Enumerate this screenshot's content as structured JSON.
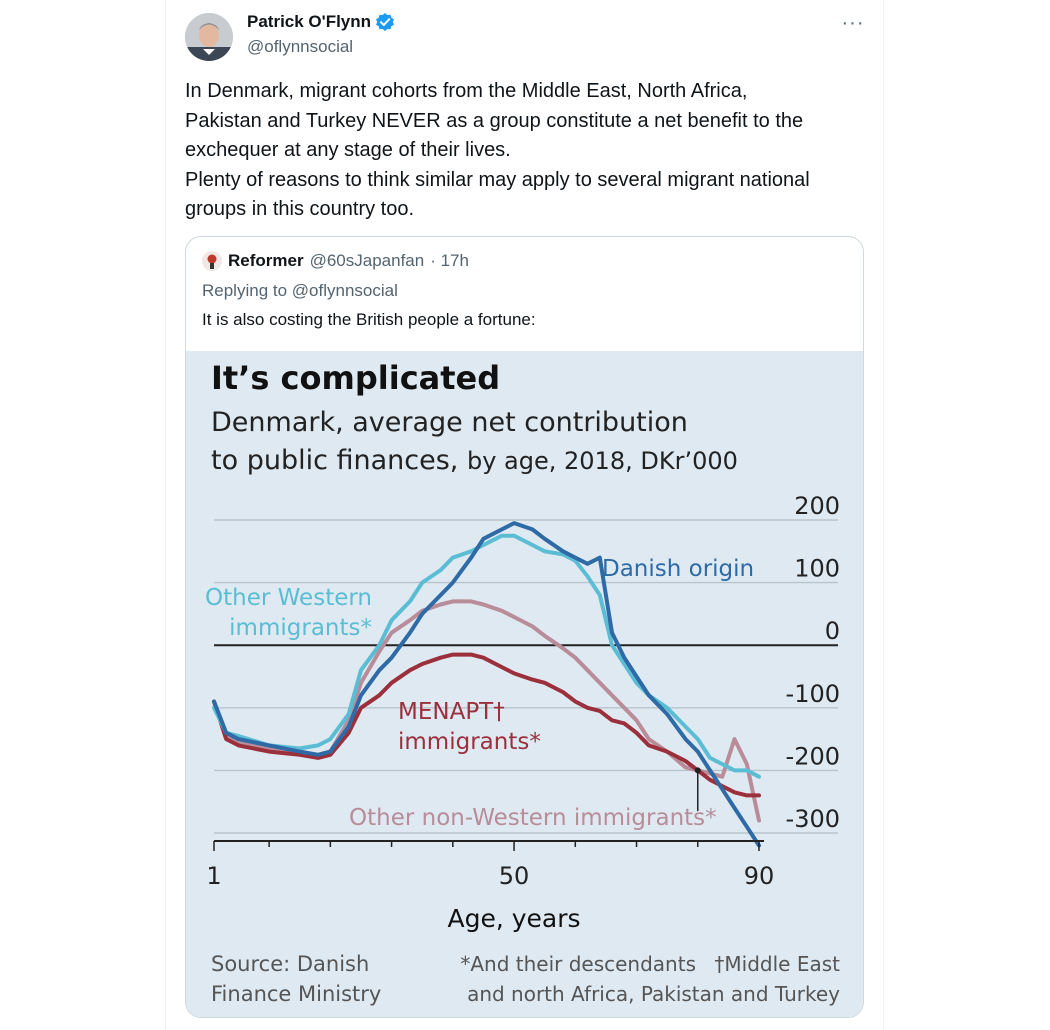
{
  "tweet": {
    "author_name": "Patrick O'Flynn",
    "handle": "@oflynnsocial",
    "more_label": "···",
    "text_lines": [
      "In Denmark, migrant cohorts from the Middle East, North Africa,",
      "Pakistan and Turkey NEVER as a group constitute a net benefit to the",
      "exchequer at any stage of their lives.",
      "Plenty of reasons to think similar may apply to several migrant national",
      "groups in this country too."
    ]
  },
  "quote": {
    "author_name": "Reformer",
    "handle": "@60sJapanfan",
    "time": "· 17h",
    "replying_to": "Replying to @oflynnsocial",
    "text": "It is also costing the British people a fortune:"
  },
  "chart_data": {
    "type": "line",
    "title": "It’s complicated",
    "subtitle_line1": "Denmark, average net contribution",
    "subtitle_line2_bold": "to public finances,",
    "subtitle_line2_rest": "by age, 2018, DKr’000",
    "xlabel": "Age, years",
    "x_ticks": [
      "1",
      "50",
      "90"
    ],
    "y_ticks": [
      "200",
      "100",
      "0",
      "-100",
      "-200",
      "-300"
    ],
    "xlim": [
      1,
      90
    ],
    "ylim": [
      -300,
      200
    ],
    "source": [
      "Source: Danish",
      "Finance Ministry"
    ],
    "footnote_left": [
      "*And their descendants",
      "and north Africa, Pakistan and Turkey"
    ],
    "footnote_right": "†Middle East",
    "colors": {
      "danish": "#2e6aa5",
      "western": "#5bbdd4",
      "menapt": "#9b2f3c",
      "nonwestern": "#b88c98",
      "background": "#dfe9f1"
    },
    "series": [
      {
        "key": "danish",
        "name": "Danish origin",
        "x": [
          1,
          3,
          5,
          10,
          15,
          18,
          20,
          23,
          25,
          28,
          30,
          33,
          35,
          38,
          40,
          43,
          45,
          48,
          50,
          53,
          55,
          58,
          60,
          62,
          64,
          66,
          68,
          70,
          72,
          75,
          78,
          80,
          82,
          84,
          86,
          88,
          90
        ],
        "y": [
          -90,
          -140,
          -150,
          -160,
          -170,
          -175,
          -170,
          -130,
          -80,
          -40,
          -20,
          20,
          50,
          80,
          100,
          140,
          170,
          185,
          195,
          185,
          170,
          150,
          140,
          130,
          140,
          20,
          -20,
          -50,
          -80,
          -110,
          -150,
          -170,
          -200,
          -230,
          -260,
          -290,
          -320
        ]
      },
      {
        "key": "western",
        "name": "Other Western immigrants*",
        "x": [
          1,
          3,
          5,
          10,
          15,
          18,
          20,
          23,
          25,
          28,
          30,
          33,
          35,
          38,
          40,
          43,
          45,
          48,
          50,
          53,
          55,
          58,
          60,
          62,
          64,
          66,
          68,
          70,
          72,
          75,
          78,
          80,
          82,
          84,
          86,
          88,
          90
        ],
        "y": [
          -100,
          -140,
          -145,
          -160,
          -165,
          -160,
          -150,
          -110,
          -40,
          0,
          40,
          70,
          100,
          120,
          140,
          150,
          160,
          175,
          175,
          160,
          150,
          145,
          135,
          110,
          80,
          0,
          -30,
          -60,
          -80,
          -100,
          -130,
          -150,
          -180,
          -190,
          -200,
          -200,
          -210
        ]
      },
      {
        "key": "menapt",
        "name": "MENAPT† immigrants*",
        "x": [
          1,
          3,
          5,
          10,
          15,
          18,
          20,
          23,
          25,
          28,
          30,
          33,
          35,
          38,
          40,
          43,
          45,
          48,
          50,
          53,
          55,
          58,
          60,
          62,
          64,
          66,
          68,
          70,
          72,
          75,
          78,
          80,
          82,
          84,
          86,
          88,
          90
        ],
        "y": [
          -90,
          -150,
          -160,
          -170,
          -175,
          -180,
          -175,
          -140,
          -100,
          -80,
          -60,
          -40,
          -30,
          -20,
          -15,
          -15,
          -20,
          -35,
          -45,
          -55,
          -60,
          -75,
          -90,
          -100,
          -105,
          -120,
          -125,
          -140,
          -160,
          -170,
          -185,
          -200,
          -215,
          -225,
          -235,
          -240,
          -240
        ]
      },
      {
        "key": "nonwestern",
        "name": "Other non-Western immigrants*",
        "x": [
          1,
          3,
          5,
          10,
          15,
          18,
          20,
          23,
          25,
          28,
          30,
          33,
          35,
          38,
          40,
          43,
          45,
          48,
          50,
          53,
          55,
          58,
          60,
          62,
          64,
          66,
          68,
          70,
          72,
          75,
          78,
          80,
          82,
          84,
          86,
          88,
          90
        ],
        "y": [
          -90,
          -145,
          -155,
          -165,
          -170,
          -175,
          -170,
          -120,
          -60,
          -10,
          20,
          40,
          55,
          65,
          70,
          70,
          65,
          55,
          45,
          30,
          15,
          -5,
          -20,
          -40,
          -60,
          -80,
          -100,
          -120,
          -150,
          -170,
          -195,
          -200,
          -205,
          -210,
          -150,
          -190,
          -280
        ]
      }
    ],
    "annotations": {
      "danish": "Danish origin",
      "western": [
        "Other Western",
        "immigrants*"
      ],
      "menapt": [
        "MENAPT†",
        "immigrants*"
      ],
      "nonwestern": "Other non-Western immigrants*"
    },
    "grid": true
  }
}
